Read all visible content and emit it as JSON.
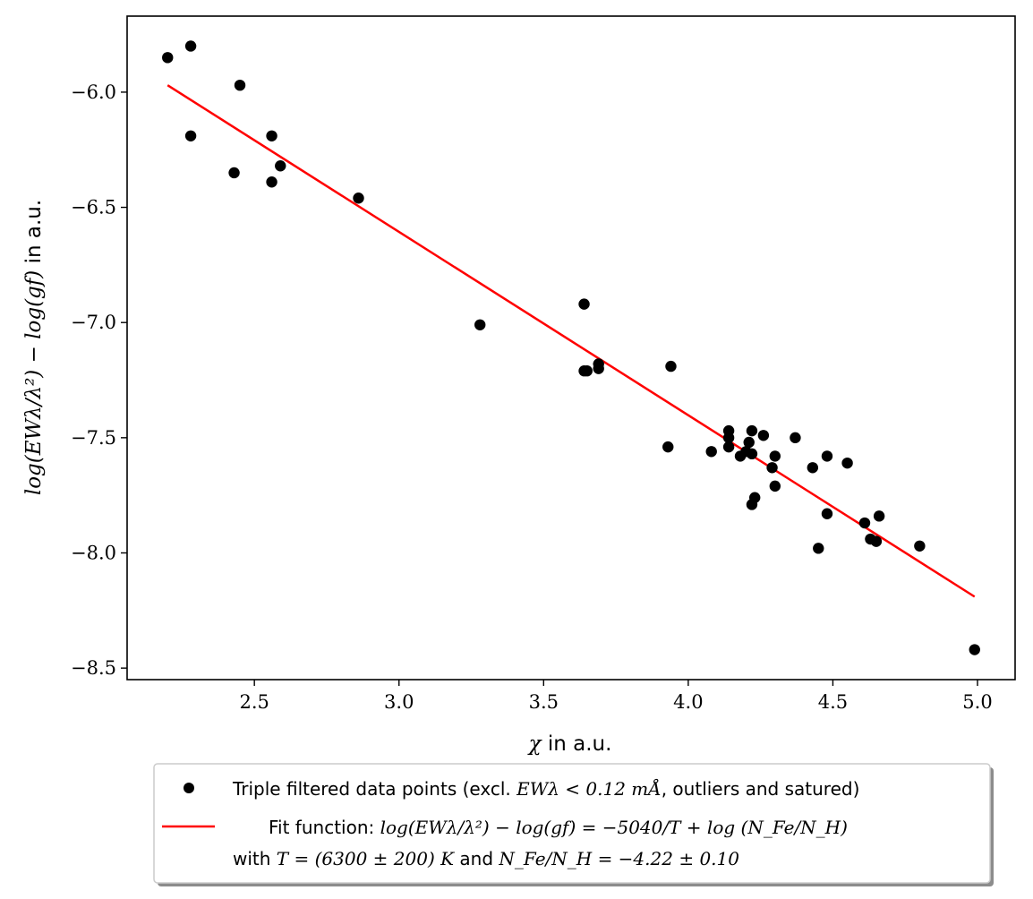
{
  "chart_data": {
    "type": "scatter",
    "xlabel": {
      "math": "χ",
      "text": " in a.u."
    },
    "ylabel": {
      "math": "log(EWλ/λ²) − log(gf)",
      "text": " in a.u."
    },
    "xlim": [
      2.06,
      5.13
    ],
    "ylim": [
      -8.55,
      -5.67
    ],
    "xticks": [
      2.5,
      3.0,
      3.5,
      4.0,
      4.5,
      5.0
    ],
    "xtick_labels": [
      "2.5",
      "3.0",
      "3.5",
      "4.0",
      "4.5",
      "5.0"
    ],
    "yticks": [
      -6.0,
      -6.5,
      -7.0,
      -7.5,
      -8.0,
      -8.5
    ],
    "ytick_labels": [
      "−6.0",
      "−6.5",
      "−7.0",
      "−7.5",
      "−8.0",
      "−8.5"
    ],
    "grid": false,
    "legend_position": "below",
    "series": [
      {
        "kind": "points",
        "color": "#000000",
        "legend": {
          "pre": "Triple filtered data points (excl. ",
          "math": "EWλ < 0.12 mÅ",
          "post": ", outliers and satured)"
        },
        "x": [
          2.2,
          2.28,
          2.28,
          2.45,
          2.43,
          2.56,
          2.56,
          2.59,
          2.86,
          3.28,
          3.64,
          3.64,
          3.65,
          3.69,
          3.69,
          3.94,
          3.93,
          4.08,
          4.14,
          4.14,
          4.14,
          4.18,
          4.2,
          4.21,
          4.22,
          4.22,
          4.22,
          4.23,
          4.26,
          4.29,
          4.3,
          4.3,
          4.37,
          4.43,
          4.45,
          4.48,
          4.48,
          4.55,
          4.61,
          4.63,
          4.65,
          4.66,
          4.8,
          4.99
        ],
        "y": [
          -5.85,
          -5.8,
          -6.19,
          -5.97,
          -6.35,
          -6.19,
          -6.39,
          -6.32,
          -6.46,
          -7.01,
          -6.92,
          -7.21,
          -7.21,
          -7.18,
          -7.2,
          -7.19,
          -7.54,
          -7.56,
          -7.47,
          -7.5,
          -7.54,
          -7.58,
          -7.56,
          -7.52,
          -7.47,
          -7.57,
          -7.79,
          -7.76,
          -7.49,
          -7.63,
          -7.58,
          -7.71,
          -7.5,
          -7.63,
          -7.98,
          -7.58,
          -7.83,
          -7.61,
          -7.87,
          -7.94,
          -7.95,
          -7.84,
          -7.97,
          -8.42
        ]
      },
      {
        "kind": "line",
        "color": "#ff0000",
        "legend": {
          "line1_pre": "Fit function: ",
          "line1_math": "log(EWλ/λ²) − log(gf) = −5040/T + log (N_Fe/N_H)",
          "line2_pre": "with ",
          "line2_math_a": "T = (6300 ± 200) K",
          "line2_mid": " and ",
          "line2_math_b": "N_Fe/N_H = −4.22 ± 0.10"
        },
        "x": [
          2.2,
          4.99
        ],
        "y": [
          -5.97,
          -8.19
        ]
      }
    ]
  }
}
